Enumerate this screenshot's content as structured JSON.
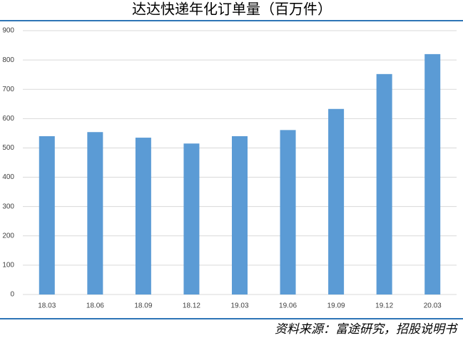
{
  "chart_data": {
    "type": "bar",
    "title": "达达快递年化订单量（百万件）",
    "categories": [
      "18.03",
      "18.06",
      "18.09",
      "18.12",
      "19.03",
      "19.06",
      "19.09",
      "19.12",
      "20.03"
    ],
    "values": [
      540,
      554,
      535,
      515,
      540,
      561,
      633,
      752,
      820
    ],
    "color": "#5b9bd5",
    "ylim": [
      0,
      900
    ],
    "yticks": [
      0,
      100,
      200,
      300,
      400,
      500,
      600,
      700,
      800,
      900
    ],
    "grid": true,
    "source": "资料来源：富途研究，招股说明书"
  }
}
